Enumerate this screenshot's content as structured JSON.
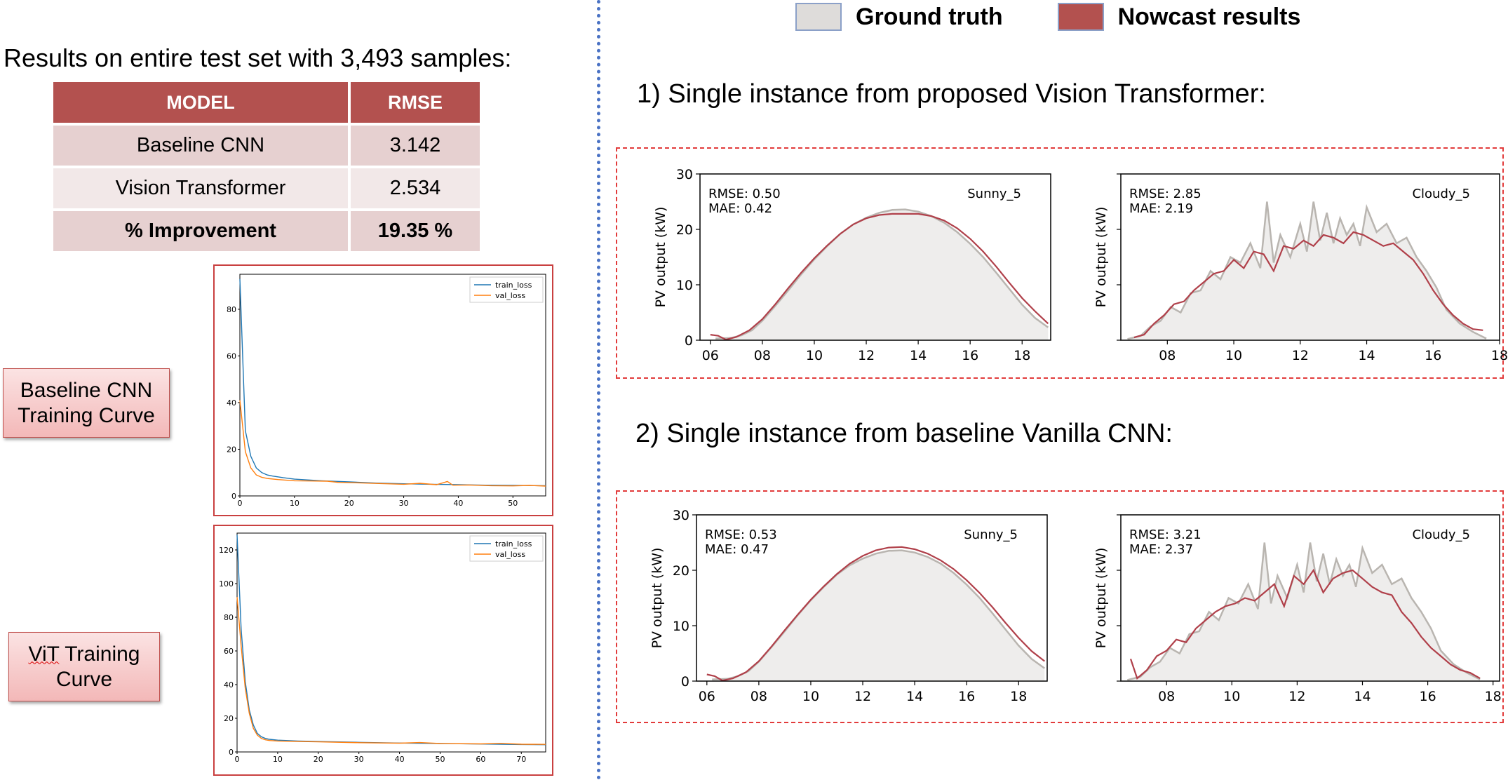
{
  "results": {
    "heading": "Results on entire test set with 3,493 samples:",
    "header_model": "MODEL",
    "header_rmse": "RMSE",
    "rows": [
      {
        "model": "Baseline CNN",
        "rmse": "3.142"
      },
      {
        "model": "Vision Transformer",
        "rmse": "2.534"
      },
      {
        "model": "% Improvement",
        "rmse": "19.35 %"
      }
    ]
  },
  "labels": {
    "cnn_curve_line1": "Baseline CNN",
    "cnn_curve_line2": "Training Curve",
    "vit_curve_word": "ViT",
    "vit_curve_rest": " Training",
    "vit_curve_line2": "Curve"
  },
  "legend": {
    "ground_truth": "Ground truth",
    "nowcast": "Nowcast results"
  },
  "sections": {
    "vit_title": "1) Single instance from proposed Vision Transformer:",
    "cnn_title": "2) Single instance from baseline Vanilla CNN:"
  },
  "colors": {
    "accent": "#b3514f",
    "ground_truth_fill": "#eeedec",
    "ground_truth_line": "#b9b5b0",
    "nowcast_line": "#b0404a",
    "train_loss": "#1f77b4",
    "val_loss": "#ff7f0e",
    "divider": "#4a72c4"
  },
  "chart_data": [
    {
      "id": "cnn-loss",
      "type": "line",
      "x_range": [
        0,
        56
      ],
      "ylim": [
        0,
        95
      ],
      "x_ticks": [
        0,
        10,
        20,
        30,
        40,
        50
      ],
      "y_ticks": [
        0,
        20,
        40,
        60,
        80
      ],
      "legend_position": "top-right",
      "series": [
        {
          "name": "train_loss",
          "x": [
            0,
            1,
            2,
            3,
            4,
            5,
            6,
            8,
            10,
            15,
            20,
            25,
            30,
            35,
            40,
            45,
            50,
            56
          ],
          "values": [
            93,
            28,
            17,
            12,
            10,
            9,
            8.5,
            7.8,
            7.2,
            6.5,
            6.0,
            5.5,
            5.2,
            5.0,
            4.8,
            4.6,
            4.5,
            4.4
          ]
        },
        {
          "name": "val_loss",
          "x": [
            0,
            1,
            2,
            3,
            4,
            5,
            7,
            10,
            13,
            16,
            18,
            22,
            26,
            30,
            33,
            36,
            38,
            39,
            42,
            46,
            50,
            53,
            56
          ],
          "values": [
            41,
            19,
            12,
            9,
            8,
            7.5,
            7.0,
            6.5,
            6.4,
            6.3,
            5.8,
            5.6,
            5.3,
            5.0,
            5.4,
            4.8,
            6.2,
            4.6,
            4.7,
            4.4,
            4.3,
            4.5,
            4.2
          ]
        }
      ]
    },
    {
      "id": "vit-loss",
      "type": "line",
      "x_range": [
        0,
        76
      ],
      "ylim": [
        0,
        130
      ],
      "x_ticks": [
        0,
        10,
        20,
        30,
        40,
        50,
        60,
        70
      ],
      "y_ticks": [
        0,
        20,
        40,
        60,
        80,
        100,
        120
      ],
      "legend_position": "top-right",
      "series": [
        {
          "name": "train_loss",
          "x": [
            0,
            1,
            2,
            3,
            4,
            5,
            6,
            7,
            8,
            10,
            15,
            20,
            30,
            40,
            50,
            60,
            70,
            76
          ],
          "values": [
            129,
            73,
            42,
            25,
            16,
            11,
            9,
            8,
            7.5,
            7,
            6.5,
            6.2,
            5.7,
            5.3,
            5.0,
            4.7,
            4.4,
            4.3
          ]
        },
        {
          "name": "val_loss",
          "x": [
            0,
            1,
            2,
            3,
            4,
            5,
            6,
            7,
            8,
            10,
            15,
            20,
            30,
            40,
            45,
            50,
            60,
            65,
            70,
            76
          ],
          "values": [
            92,
            63,
            38,
            23,
            14,
            10,
            8,
            7.2,
            6.8,
            6.5,
            6.2,
            6.0,
            5.5,
            5.2,
            5.6,
            5.0,
            4.8,
            5.1,
            4.6,
            4.5
          ]
        }
      ]
    },
    {
      "id": "vit-sunny",
      "type": "area",
      "title": "Sunny_5",
      "annotation": [
        "RMSE: 0.50",
        "MAE: 0.42"
      ],
      "ylabel": "PV output (kW)",
      "x_range": [
        5.6,
        19.1
      ],
      "ylim": [
        0,
        30
      ],
      "x_ticks": [
        "06",
        "08",
        "10",
        "12",
        "14",
        "16",
        "18"
      ],
      "y_ticks": [
        0,
        10,
        20,
        30
      ],
      "series": [
        {
          "name": "Ground truth",
          "x": [
            6.2,
            6.8,
            7.2,
            7.6,
            8,
            8.5,
            9,
            9.5,
            10,
            10.5,
            11,
            11.5,
            12,
            12.5,
            13,
            13.5,
            14,
            14.5,
            15,
            15.5,
            16,
            16.5,
            17,
            17.5,
            18,
            18.5,
            19
          ],
          "values": [
            0.3,
            0.4,
            0.9,
            1.8,
            3.5,
            6.2,
            9.0,
            11.9,
            14.6,
            17.0,
            19.2,
            20.9,
            22.1,
            23.0,
            23.5,
            23.6,
            23.2,
            22.4,
            21.2,
            19.5,
            17.4,
            15.0,
            12.2,
            9.3,
            6.4,
            4.0,
            2.3
          ]
        },
        {
          "name": "Nowcast results",
          "x": [
            6.0,
            6.3,
            6.6,
            7,
            7.5,
            8,
            8.5,
            9,
            9.5,
            10,
            10.5,
            11,
            11.5,
            12,
            12.5,
            13,
            13.5,
            14,
            14.5,
            15,
            15.5,
            16,
            16.5,
            17,
            17.5,
            18,
            18.5,
            19
          ],
          "values": [
            1.0,
            0.8,
            0.1,
            0.6,
            1.8,
            3.8,
            6.5,
            9.4,
            12.2,
            14.8,
            17.1,
            19.2,
            20.9,
            22.0,
            22.6,
            22.8,
            22.8,
            22.8,
            22.4,
            21.6,
            20.2,
            18.3,
            16.0,
            13.3,
            10.4,
            7.6,
            5.2,
            3.0
          ]
        }
      ]
    },
    {
      "id": "vit-cloudy",
      "type": "area",
      "title": "Cloudy_5",
      "annotation": [
        "RMSE: 2.85",
        "MAE: 2.19"
      ],
      "ylabel": "PV output (kW)",
      "x_range": [
        6.6,
        18.0
      ],
      "ylim": [
        0,
        30
      ],
      "x_ticks": [
        "08",
        "10",
        "12",
        "14",
        "16",
        "18"
      ],
      "y_ticks": [],
      "series": [
        {
          "name": "Ground truth",
          "x": [
            6.8,
            7.2,
            7.5,
            7.8,
            8.1,
            8.4,
            8.7,
            9,
            9.3,
            9.6,
            9.9,
            10.2,
            10.5,
            10.8,
            11.0,
            11.2,
            11.4,
            11.7,
            12.0,
            12.2,
            12.4,
            12.6,
            12.8,
            13.0,
            13.2,
            13.4,
            13.6,
            13.8,
            14.0,
            14.3,
            14.6,
            14.9,
            15.2,
            15.5,
            15.8,
            16.1,
            16.4,
            16.8,
            17.2,
            17.6
          ],
          "values": [
            0.2,
            0.8,
            2.5,
            3.5,
            6.0,
            5.0,
            8.5,
            9.0,
            12.5,
            11.0,
            15.0,
            14.0,
            17.5,
            13.0,
            25.0,
            14.0,
            19.0,
            15.0,
            21.0,
            16.0,
            25.0,
            18.0,
            23.0,
            17.5,
            22.0,
            19.0,
            21.0,
            17.0,
            24.0,
            19.5,
            21.0,
            17.5,
            18.5,
            15.0,
            12.5,
            9.5,
            5.5,
            3.0,
            1.5,
            0.3
          ]
        },
        {
          "name": "Nowcast results",
          "x": [
            7.0,
            7.3,
            7.6,
            7.9,
            8.2,
            8.5,
            8.8,
            9.1,
            9.4,
            9.7,
            10.0,
            10.3,
            10.6,
            10.9,
            11.2,
            11.5,
            11.8,
            12.1,
            12.4,
            12.7,
            13.0,
            13.3,
            13.6,
            13.9,
            14.2,
            14.5,
            14.8,
            15.1,
            15.4,
            15.7,
            16.0,
            16.3,
            16.6,
            16.9,
            17.2,
            17.5
          ],
          "values": [
            0.5,
            1.0,
            3.0,
            4.5,
            6.5,
            7.0,
            9.0,
            10.5,
            12.0,
            12.5,
            14.5,
            13.0,
            16.0,
            15.5,
            12.5,
            17.0,
            16.5,
            18.0,
            17.0,
            19.0,
            18.5,
            17.5,
            19.5,
            19.0,
            18.0,
            17.0,
            17.5,
            16.0,
            14.5,
            12.0,
            9.0,
            6.5,
            4.5,
            3.0,
            2.0,
            1.8
          ]
        }
      ]
    },
    {
      "id": "cnn-sunny",
      "type": "area",
      "title": "Sunny_5",
      "annotation": [
        "RMSE: 0.53",
        "MAE: 0.47"
      ],
      "ylabel": "PV output (kW)",
      "x_range": [
        5.6,
        19.1
      ],
      "ylim": [
        0,
        30
      ],
      "x_ticks": [
        "06",
        "08",
        "10",
        "12",
        "14",
        "16",
        "18"
      ],
      "y_ticks": [
        0,
        10,
        20,
        30
      ],
      "series": [
        {
          "name": "Ground truth",
          "x": [
            6.2,
            6.8,
            7.2,
            7.6,
            8,
            8.5,
            9,
            9.5,
            10,
            10.5,
            11,
            11.5,
            12,
            12.5,
            13,
            13.5,
            14,
            14.5,
            15,
            15.5,
            16,
            16.5,
            17,
            17.5,
            18,
            18.5,
            19
          ],
          "values": [
            0.3,
            0.4,
            0.9,
            1.8,
            3.5,
            6.2,
            9.0,
            11.9,
            14.6,
            17.0,
            19.2,
            20.9,
            22.1,
            23.0,
            23.5,
            23.6,
            23.2,
            22.4,
            21.2,
            19.5,
            17.4,
            15.0,
            12.2,
            9.3,
            6.4,
            4.0,
            2.3
          ]
        },
        {
          "name": "Nowcast results",
          "x": [
            6.0,
            6.3,
            6.6,
            7,
            7.5,
            8,
            8.5,
            9,
            9.5,
            10,
            10.5,
            11,
            11.5,
            12,
            12.5,
            13,
            13.5,
            14,
            14.5,
            15,
            15.5,
            16,
            16.5,
            17,
            17.5,
            18,
            18.5,
            19
          ],
          "values": [
            1.2,
            0.9,
            0.1,
            0.5,
            1.6,
            3.6,
            6.3,
            9.2,
            12.0,
            14.7,
            17.1,
            19.3,
            21.2,
            22.6,
            23.6,
            24.1,
            24.2,
            23.8,
            23.0,
            21.8,
            20.2,
            18.2,
            15.9,
            13.3,
            10.5,
            7.8,
            5.4,
            3.6
          ]
        }
      ]
    },
    {
      "id": "cnn-cloudy",
      "type": "area",
      "title": "Cloudy_5",
      "annotation": [
        "RMSE: 3.21",
        "MAE: 2.37"
      ],
      "ylabel": "PV output (kW)",
      "x_range": [
        6.6,
        18.2
      ],
      "ylim": [
        0,
        30
      ],
      "x_ticks": [
        "08",
        "10",
        "12",
        "14",
        "16",
        "18"
      ],
      "y_ticks": [],
      "series": [
        {
          "name": "Ground truth",
          "x": [
            6.8,
            7.2,
            7.5,
            7.8,
            8.1,
            8.4,
            8.7,
            9,
            9.3,
            9.6,
            9.9,
            10.2,
            10.5,
            10.8,
            11.0,
            11.2,
            11.4,
            11.7,
            12.0,
            12.2,
            12.4,
            12.6,
            12.8,
            13.0,
            13.2,
            13.4,
            13.6,
            13.8,
            14.0,
            14.3,
            14.6,
            14.9,
            15.2,
            15.5,
            15.8,
            16.1,
            16.4,
            16.8,
            17.2,
            17.6
          ],
          "values": [
            0.2,
            0.8,
            2.5,
            3.5,
            6.0,
            5.0,
            8.5,
            9.0,
            12.5,
            11.0,
            15.0,
            14.0,
            17.5,
            13.0,
            25.0,
            14.0,
            19.0,
            15.0,
            21.0,
            16.0,
            25.0,
            18.0,
            23.0,
            17.5,
            22.0,
            19.0,
            21.0,
            17.0,
            24.0,
            19.5,
            21.0,
            17.5,
            18.5,
            15.0,
            12.5,
            9.5,
            5.5,
            3.0,
            1.5,
            0.3
          ]
        },
        {
          "name": "Nowcast results",
          "x": [
            6.9,
            7.1,
            7.4,
            7.7,
            8.0,
            8.3,
            8.6,
            8.9,
            9.2,
            9.5,
            9.8,
            10.1,
            10.4,
            10.7,
            11.0,
            11.3,
            11.6,
            11.9,
            12.2,
            12.5,
            12.8,
            13.1,
            13.4,
            13.7,
            14.0,
            14.3,
            14.6,
            14.9,
            15.2,
            15.5,
            15.8,
            16.1,
            16.4,
            16.7,
            17.0,
            17.3,
            17.6
          ],
          "values": [
            4.0,
            0.5,
            2.0,
            4.5,
            5.5,
            7.5,
            7.0,
            9.5,
            11.0,
            12.5,
            13.5,
            14.0,
            15.0,
            14.5,
            16.0,
            17.5,
            13.5,
            19.0,
            17.5,
            20.0,
            16.0,
            18.5,
            19.5,
            20.0,
            18.5,
            17.0,
            16.0,
            15.5,
            12.5,
            10.5,
            8.0,
            6.0,
            4.5,
            3.0,
            2.0,
            1.5,
            0.5
          ]
        }
      ]
    }
  ]
}
